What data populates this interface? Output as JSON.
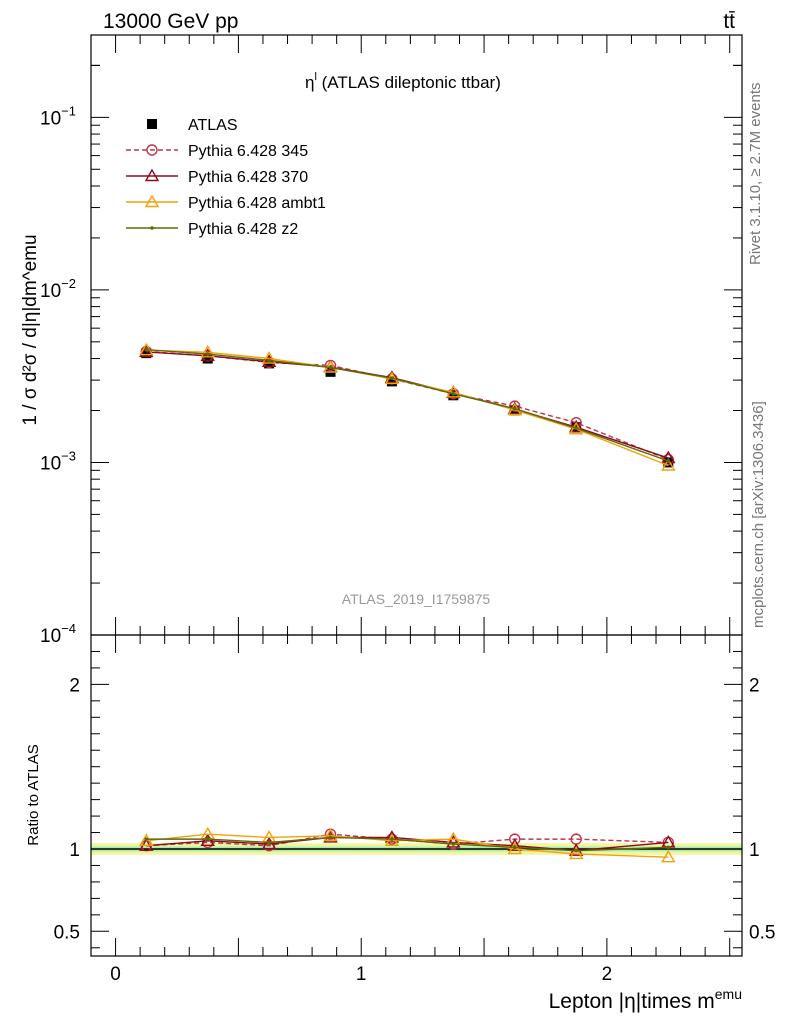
{
  "header": {
    "left": "13000 GeV pp",
    "right": "tt̄"
  },
  "side_text": {
    "rivet": "Rivet 3.1.10, ≥ 2.7M events",
    "mcplots": "mcplots.cern.ch [arXiv:1306.3436]"
  },
  "chart_data": [
    {
      "type": "line",
      "title": "η^l (ATLAS dileptonic ttbar)",
      "title_main": "η",
      "title_sup": "l",
      "title_rest": " (ATLAS dileptonic ttbar)",
      "ylabel": "1 / σ d²σ / d|η|dm^emu",
      "watermark": "ATLAS_2019_I1759875",
      "yscale": "log",
      "xlim": [
        -0.1,
        2.55
      ],
      "ylim": [
        0.0001,
        0.3
      ],
      "ytick_labels": [
        {
          "v": 0.1,
          "base": "10",
          "exp": "−1"
        },
        {
          "v": 0.01,
          "base": "10",
          "exp": "−2"
        },
        {
          "v": 0.001,
          "base": "10",
          "exp": "−3"
        },
        {
          "v": 0.0001,
          "base": "10",
          "exp": "−4"
        }
      ],
      "legend_position": "top-left",
      "x": [
        0.125,
        0.375,
        0.625,
        0.875,
        1.125,
        1.375,
        1.625,
        1.875,
        2.25
      ],
      "series": [
        {
          "name": "ATLAS",
          "color": "#000000",
          "marker": "square",
          "values": [
            0.0043,
            0.004,
            0.00375,
            0.00335,
            0.00295,
            0.00245,
            0.002,
            0.0016,
            0.001
          ]
        },
        {
          "name": "Pythia 6.428 345",
          "color": "#c0344f",
          "marker": "circle",
          "dashed": true,
          "values": [
            0.0044,
            0.00415,
            0.0038,
            0.00365,
            0.00305,
            0.0025,
            0.00212,
            0.0017,
            0.00104
          ]
        },
        {
          "name": "Pythia 6.428 370",
          "color": "#8b0a1e",
          "marker": "triangle",
          "values": [
            0.00437,
            0.00415,
            0.00383,
            0.00357,
            0.0031,
            0.00253,
            0.00204,
            0.0016,
            0.00106
          ]
        },
        {
          "name": "Pythia 6.428 ambt1",
          "color": "#f2a10a",
          "marker": "triangle",
          "values": [
            0.00448,
            0.00435,
            0.004,
            0.00355,
            0.00305,
            0.00255,
            0.00201,
            0.00156,
            0.00096
          ]
        },
        {
          "name": "Pythia 6.428 z2",
          "color": "#5d6b06",
          "marker": "dot",
          "values": [
            0.0045,
            0.00425,
            0.0039,
            0.00355,
            0.00308,
            0.0025,
            0.00205,
            0.00158,
            0.00102
          ]
        }
      ]
    },
    {
      "type": "line",
      "ylabel": "Ratio to ATLAS",
      "xlabel": "Lepton |η|times m^emu",
      "xlabel_main": "Lepton |η|times m",
      "xlabel_sup": "emu",
      "xlim": [
        -0.1,
        2.55
      ],
      "ylim": [
        0.35,
        2.3
      ],
      "xticks": [
        0,
        1,
        2
      ],
      "xtick_labels": [
        "0",
        "1",
        "2"
      ],
      "yticks": [
        0.5,
        1,
        2
      ],
      "ytick_labels": [
        "0.5",
        "1",
        "2"
      ],
      "band": {
        "inner": 0.015,
        "outer": 0.035
      },
      "x": [
        0.125,
        0.375,
        0.625,
        0.875,
        1.125,
        1.375,
        1.625,
        1.875,
        2.25
      ],
      "series": [
        {
          "name": "Pythia 6.428 345",
          "color": "#c0344f",
          "marker": "circle",
          "dashed": true,
          "values": [
            1.02,
            1.04,
            1.02,
            1.09,
            1.06,
            1.03,
            1.06,
            1.06,
            1.04
          ]
        },
        {
          "name": "Pythia 6.428 370",
          "color": "#8b0a1e",
          "marker": "triangle",
          "values": [
            1.02,
            1.05,
            1.03,
            1.07,
            1.07,
            1.04,
            1.02,
            0.99,
            1.04
          ]
        },
        {
          "name": "Pythia 6.428 ambt1",
          "color": "#f2a10a",
          "marker": "triangle",
          "values": [
            1.05,
            1.09,
            1.07,
            1.08,
            1.05,
            1.06,
            1.0,
            0.97,
            0.95
          ]
        },
        {
          "name": "Pythia 6.428 z2",
          "color": "#5d6b06",
          "marker": "dot",
          "values": [
            1.06,
            1.06,
            1.04,
            1.07,
            1.06,
            1.03,
            1.01,
            0.99,
            1.01
          ]
        }
      ]
    }
  ]
}
